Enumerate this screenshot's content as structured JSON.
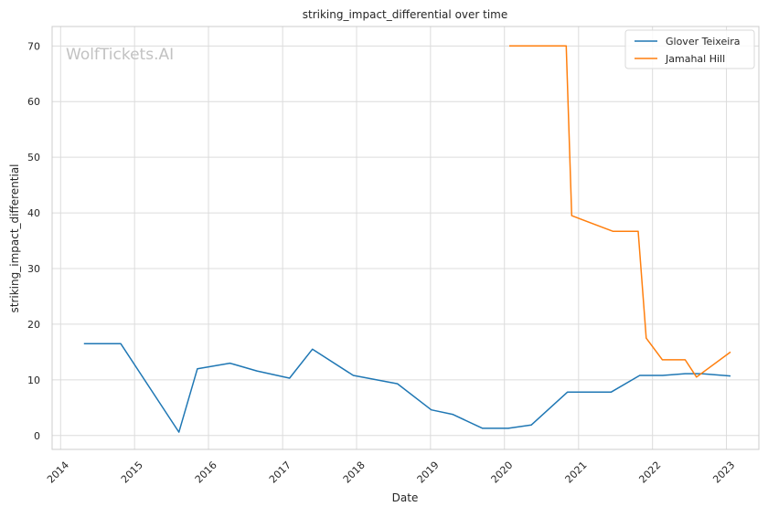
{
  "chart_data": {
    "type": "line",
    "title": "striking_impact_differential over time",
    "xlabel": "Date",
    "ylabel": "striking_impact_differential",
    "watermark": "WolfTickets.AI",
    "xlim": [
      "2013-11-20",
      "2023-06-10"
    ],
    "ylim": [
      -2.5,
      73.5
    ],
    "x_ticks": [
      "2014",
      "2015",
      "2016",
      "2017",
      "2018",
      "2019",
      "2020",
      "2021",
      "2022",
      "2023"
    ],
    "y_ticks": [
      "0",
      "10",
      "20",
      "30",
      "40",
      "50",
      "60",
      "70"
    ],
    "grid": true,
    "legend_position": "top-right",
    "series": [
      {
        "name": "Glover Teixeira",
        "color": "#1f77b4",
        "points": [
          [
            "2014-04-26",
            16.5
          ],
          [
            "2014-10-25",
            16.5
          ],
          [
            "2015-08-08",
            0.6
          ],
          [
            "2015-11-07",
            12.0
          ],
          [
            "2016-04-16",
            13.0
          ],
          [
            "2016-08-27",
            11.6
          ],
          [
            "2017-02-04",
            10.3
          ],
          [
            "2017-05-28",
            15.5
          ],
          [
            "2017-12-16",
            10.8
          ],
          [
            "2018-07-22",
            9.3
          ],
          [
            "2019-01-05",
            4.6
          ],
          [
            "2019-04-20",
            3.8
          ],
          [
            "2019-09-15",
            1.3
          ],
          [
            "2020-01-20",
            1.3
          ],
          [
            "2020-05-13",
            1.9
          ],
          [
            "2020-11-07",
            7.8
          ],
          [
            "2021-06-10",
            7.8
          ],
          [
            "2021-10-30",
            10.8
          ],
          [
            "2022-02-20",
            10.8
          ],
          [
            "2022-06-11",
            11.1
          ],
          [
            "2022-09-01",
            11.1
          ],
          [
            "2023-01-21",
            10.7
          ]
        ]
      },
      {
        "name": "Jamahal Hill",
        "color": "#ff7f0e",
        "points": [
          [
            "2020-01-25",
            70.0
          ],
          [
            "2020-11-01",
            70.0
          ],
          [
            "2020-11-28",
            39.5
          ],
          [
            "2021-06-19",
            36.7
          ],
          [
            "2021-10-22",
            36.7
          ],
          [
            "2021-12-01",
            17.5
          ],
          [
            "2022-02-19",
            13.6
          ],
          [
            "2022-06-11",
            13.6
          ],
          [
            "2022-08-06",
            10.5
          ],
          [
            "2023-01-21",
            15.0
          ]
        ]
      }
    ]
  }
}
